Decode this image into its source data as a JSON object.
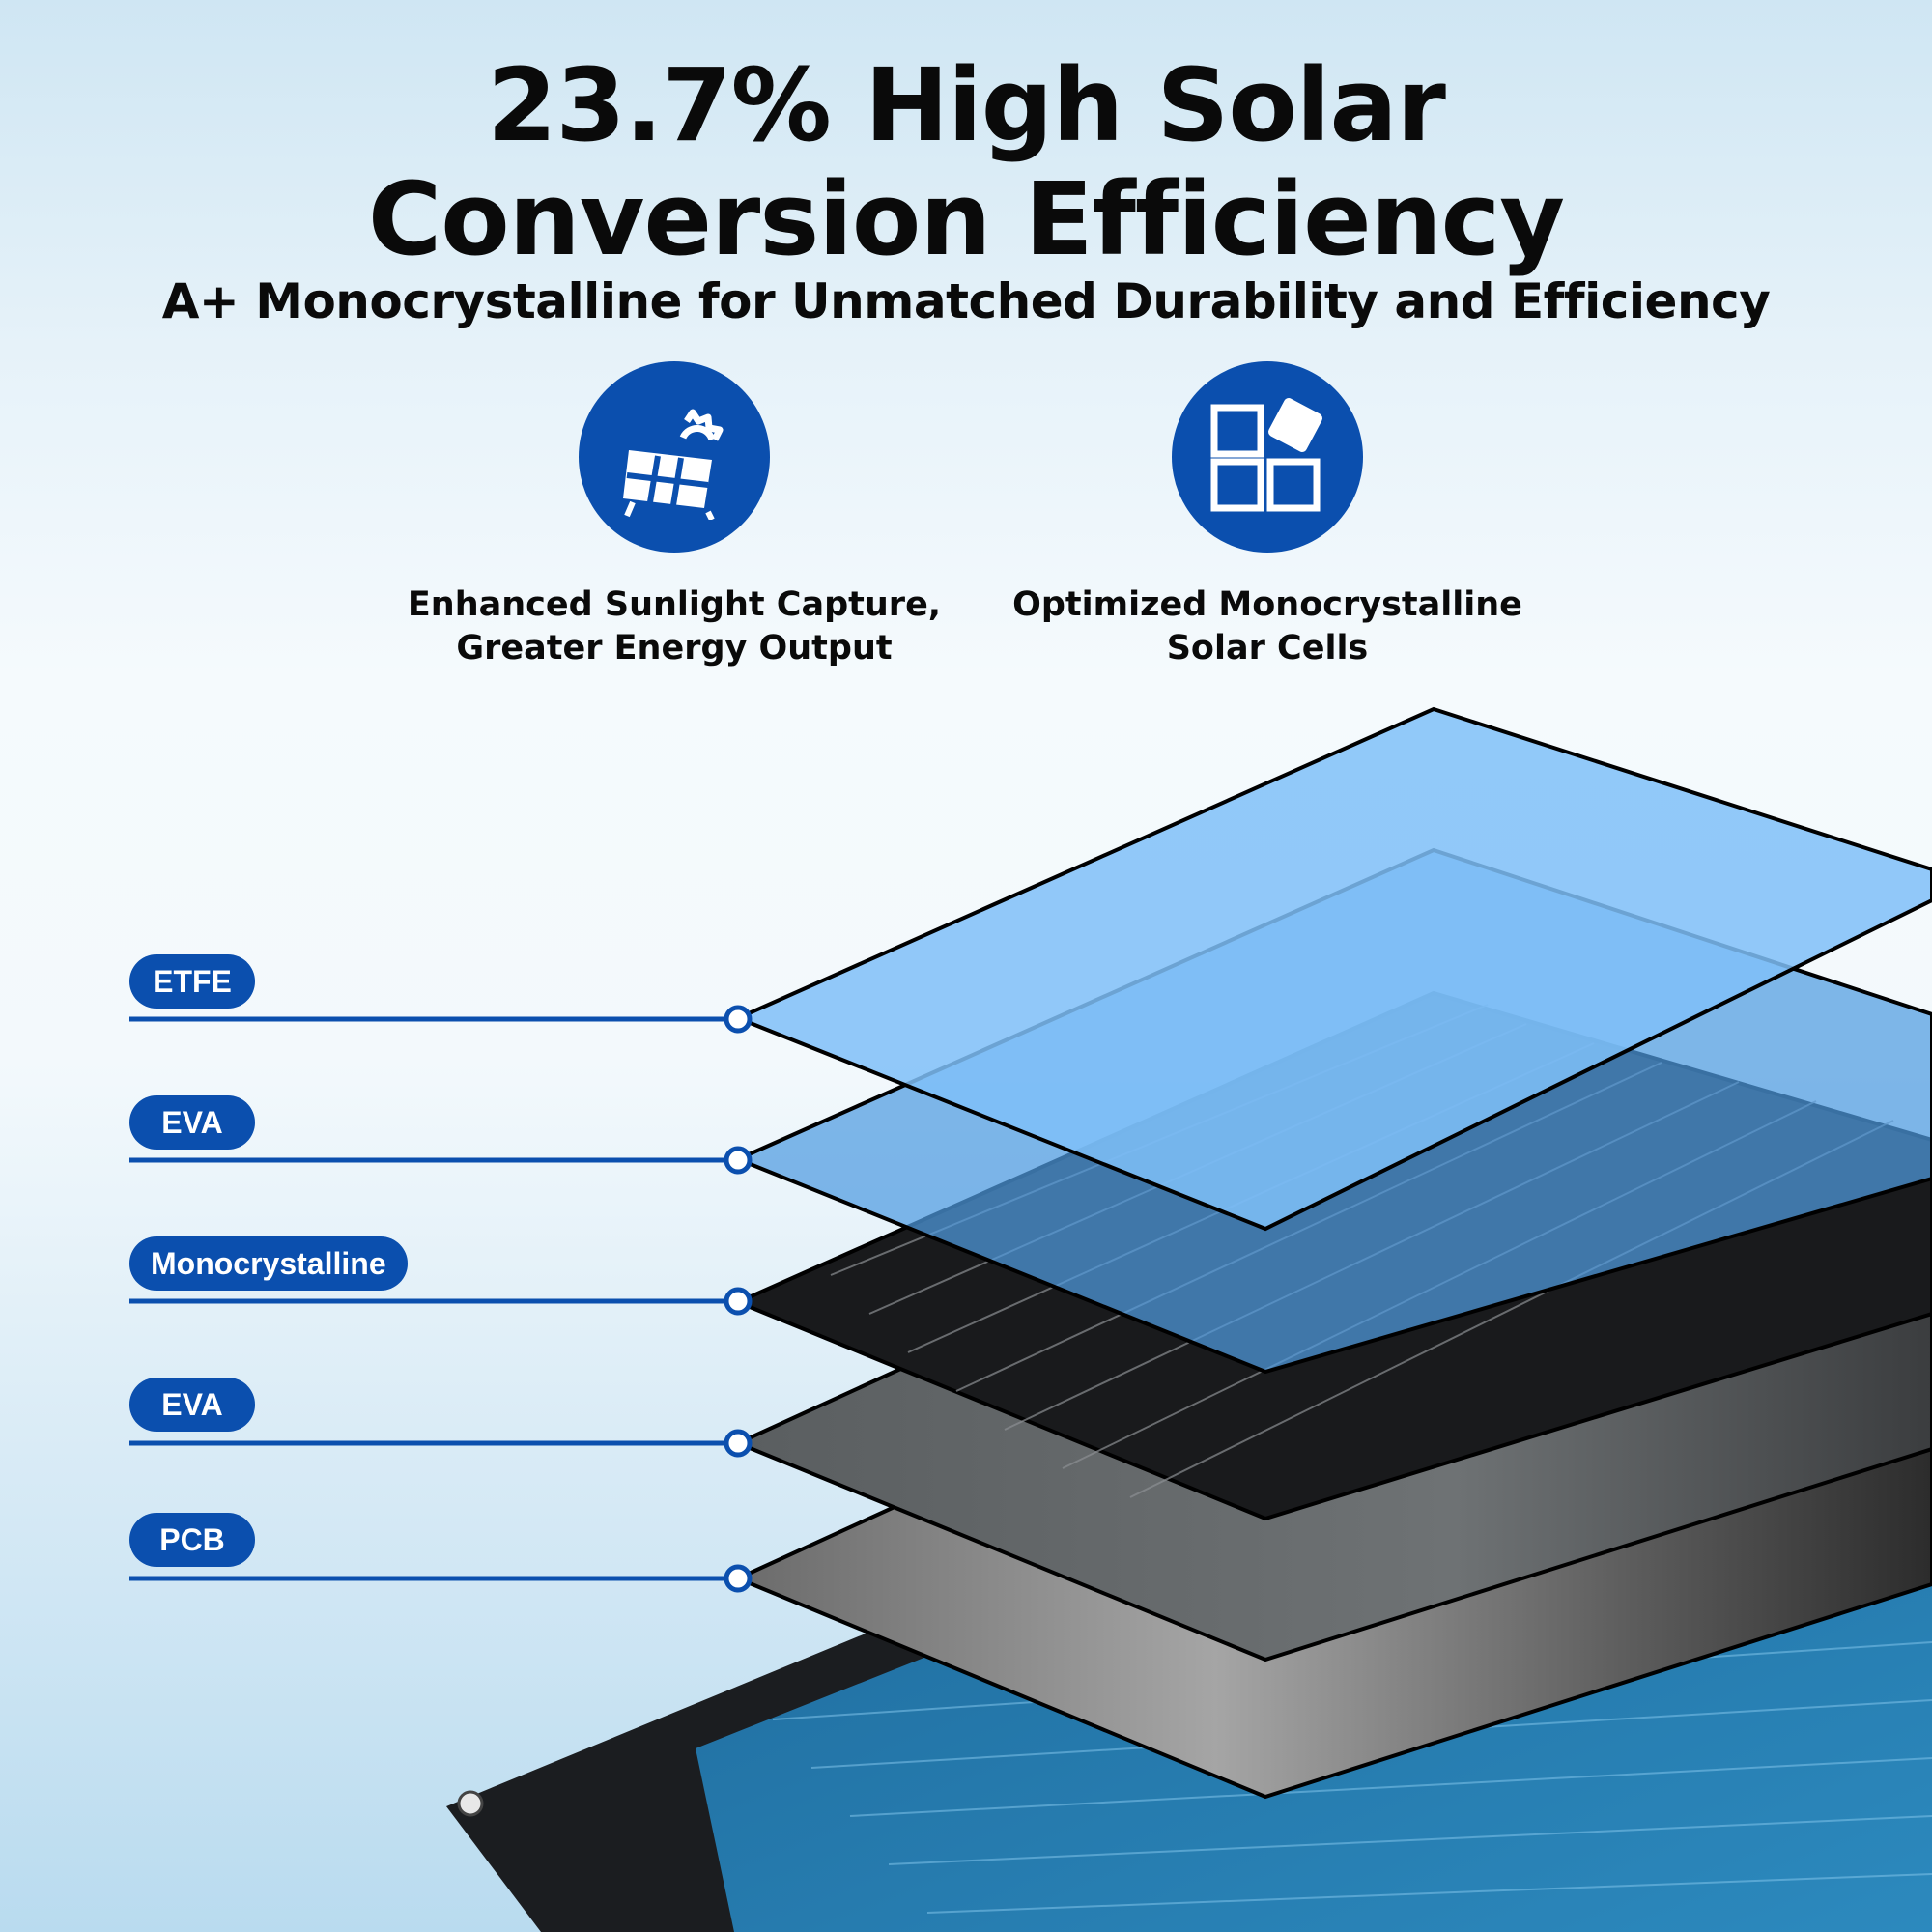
{
  "header": {
    "title": "23.7% High Solar\nConversion Efficiency",
    "subtitle": "A+ Monocrystalline for Unmatched Durability and Efficiency"
  },
  "features": [
    {
      "icon": "solar-panel-sun-icon",
      "caption": "Enhanced Sunlight Capture,\nGreater Energy Output"
    },
    {
      "icon": "modular-cells-icon",
      "caption": "Optimized Monocrystalline\nSolar Cells"
    }
  ],
  "layers": [
    {
      "label": "ETFE",
      "color": "#7fbff8"
    },
    {
      "label": "EVA",
      "color": "#5aa3e0"
    },
    {
      "label": "Monocrystalline",
      "color": "#1a1a1a"
    },
    {
      "label": "EVA",
      "color": "#666a6d"
    },
    {
      "label": "PCB",
      "color": "#555555"
    }
  ],
  "colors": {
    "accent": "#0b4fae",
    "text": "#0a0a0a"
  }
}
